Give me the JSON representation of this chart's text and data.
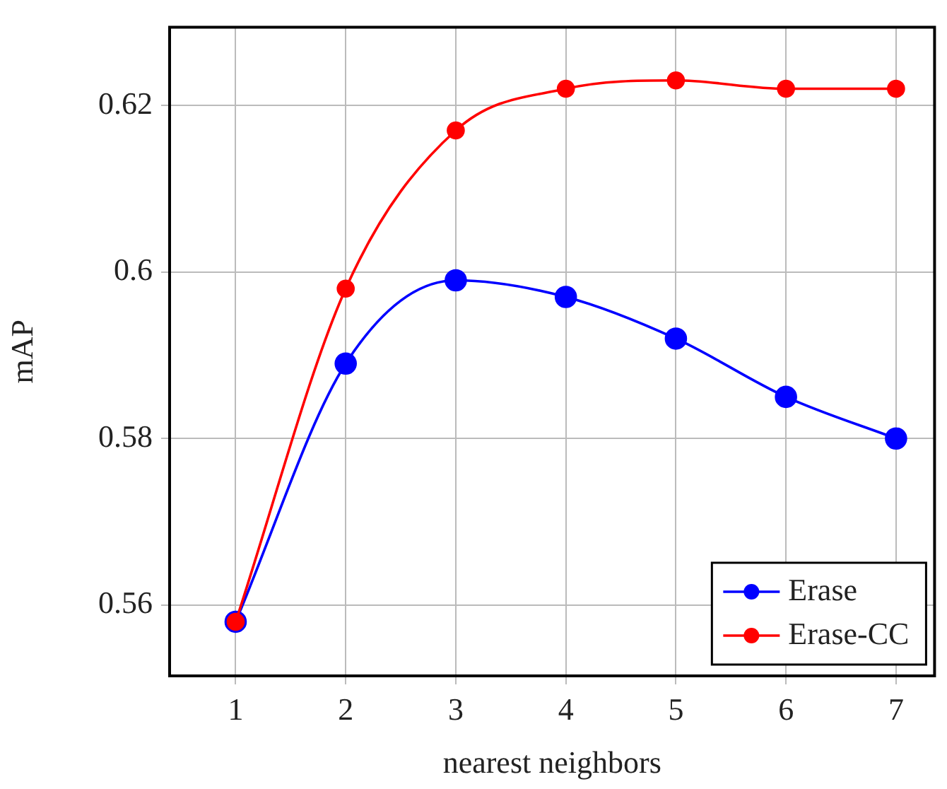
{
  "chart_data": {
    "type": "line",
    "xlabel": "nearest neighbors",
    "ylabel": "mAP",
    "x": [
      1,
      2,
      3,
      4,
      5,
      6,
      7
    ],
    "series": [
      {
        "name": "Erase",
        "color": "#0000ff",
        "values": [
          0.558,
          0.589,
          0.599,
          0.597,
          0.592,
          0.585,
          0.58
        ]
      },
      {
        "name": "Erase-CC",
        "color": "#ff0000",
        "values": [
          0.558,
          0.598,
          0.617,
          0.622,
          0.623,
          0.622,
          0.622
        ]
      }
    ],
    "xlim": [
      0.4,
      7.35
    ],
    "xticks": [
      1,
      2,
      3,
      4,
      5,
      6,
      7
    ],
    "ylim": [
      0.5515,
      0.6294
    ],
    "yticks": [
      0.56,
      0.58,
      0.6,
      0.62
    ],
    "grid": true,
    "legend": "bottom right",
    "marker": "circle",
    "line_style": "solid"
  }
}
